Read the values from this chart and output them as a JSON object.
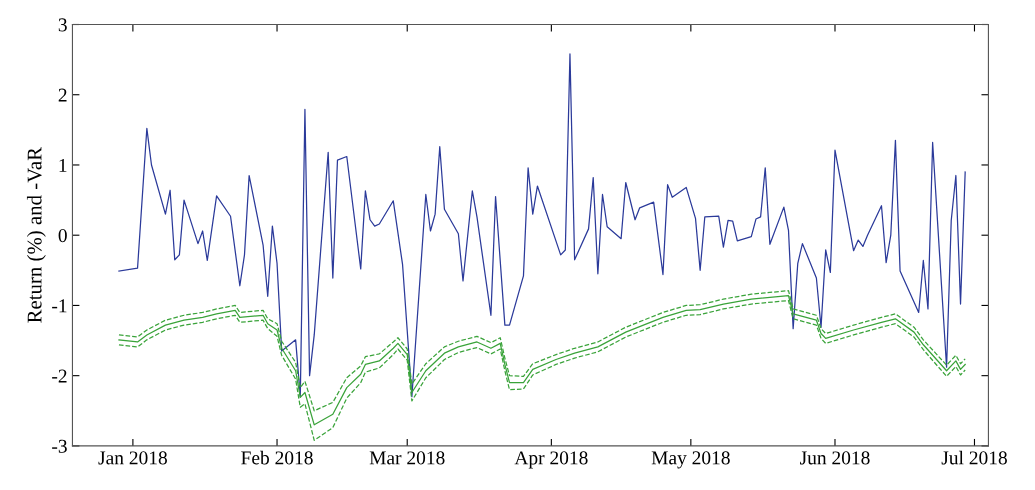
{
  "chart_data": {
    "type": "line",
    "ylabel": "Return (%) and -VaR",
    "xlim": [
      "2017-12-19",
      "2018-07-04"
    ],
    "ylim": [
      -3,
      3
    ],
    "xticks": [
      {
        "value": "2018-01-01",
        "label": "Jan 2018"
      },
      {
        "value": "2018-02-01",
        "label": "Feb 2018"
      },
      {
        "value": "2018-03-01",
        "label": "Mar 2018"
      },
      {
        "value": "2018-04-01",
        "label": "Apr 2018"
      },
      {
        "value": "2018-05-01",
        "label": "May 2018"
      },
      {
        "value": "2018-06-01",
        "label": "Jun 2018"
      },
      {
        "value": "2018-07-01",
        "label": "Jul 2018"
      }
    ],
    "yticks": [
      -3,
      -2,
      -1,
      0,
      1,
      2,
      3
    ],
    "grid": false,
    "marker": "none",
    "line_style": "solid",
    "series": [
      {
        "color": "#2b3a9a",
        "x": [
          "2017-12-29",
          "2018-01-02",
          "2018-01-04",
          "2018-01-05",
          "2018-01-08",
          "2018-01-09",
          "2018-01-10",
          "2018-01-11",
          "2018-01-12",
          "2018-01-15",
          "2018-01-16",
          "2018-01-17",
          "2018-01-19",
          "2018-01-22",
          "2018-01-24",
          "2018-01-25",
          "2018-01-26",
          "2018-01-29",
          "2018-01-30",
          "2018-01-31",
          "2018-02-01",
          "2018-02-02",
          "2018-02-05",
          "2018-02-06",
          "2018-02-07",
          "2018-02-08",
          "2018-02-09",
          "2018-02-12",
          "2018-02-13",
          "2018-02-14",
          "2018-02-16",
          "2018-02-19",
          "2018-02-20",
          "2018-02-21",
          "2018-02-22",
          "2018-02-23",
          "2018-02-26",
          "2018-02-28",
          "2018-03-02",
          "2018-03-05",
          "2018-03-06",
          "2018-03-07",
          "2018-03-08",
          "2018-03-09",
          "2018-03-12",
          "2018-03-13",
          "2018-03-15",
          "2018-03-16",
          "2018-03-19",
          "2018-03-20",
          "2018-03-22",
          "2018-03-23",
          "2018-03-26",
          "2018-03-27",
          "2018-03-28",
          "2018-03-29",
          "2018-04-03",
          "2018-04-04",
          "2018-04-05",
          "2018-04-06",
          "2018-04-09",
          "2018-04-10",
          "2018-04-11",
          "2018-04-12",
          "2018-04-13",
          "2018-04-16",
          "2018-04-17",
          "2018-04-19",
          "2018-04-20",
          "2018-04-23",
          "2018-04-25",
          "2018-04-26",
          "2018-04-27",
          "2018-04-30",
          "2018-05-02",
          "2018-05-03",
          "2018-05-04",
          "2018-05-07",
          "2018-05-08",
          "2018-05-09",
          "2018-05-10",
          "2018-05-11",
          "2018-05-14",
          "2018-05-15",
          "2018-05-16",
          "2018-05-17",
          "2018-05-18",
          "2018-05-21",
          "2018-05-22",
          "2018-05-23",
          "2018-05-24",
          "2018-05-25",
          "2018-05-28",
          "2018-05-29",
          "2018-05-30",
          "2018-05-31",
          "2018-06-01",
          "2018-06-05",
          "2018-06-06",
          "2018-06-07",
          "2018-06-08",
          "2018-06-11",
          "2018-06-12",
          "2018-06-13",
          "2018-06-14",
          "2018-06-15",
          "2018-06-19",
          "2018-06-20",
          "2018-06-21",
          "2018-06-22",
          "2018-06-25",
          "2018-06-26",
          "2018-06-27",
          "2018-06-28",
          "2018-06-29"
        ],
        "values": [
          -0.51,
          -0.47,
          1.52,
          1.0,
          0.3,
          0.64,
          -0.35,
          -0.28,
          0.5,
          -0.12,
          0.06,
          -0.36,
          0.56,
          0.27,
          -0.72,
          -0.28,
          0.85,
          -0.14,
          -0.87,
          0.13,
          -0.4,
          -1.65,
          -1.49,
          -2.3,
          1.79,
          -2.0,
          -1.42,
          1.18,
          -0.61,
          1.07,
          1.12,
          -0.48,
          0.63,
          0.22,
          0.13,
          0.16,
          0.49,
          -0.42,
          -2.3,
          0.58,
          0.06,
          0.3,
          1.26,
          0.37,
          0.02,
          -0.65,
          0.63,
          0.26,
          -1.14,
          0.55,
          -1.28,
          -1.28,
          -0.58,
          0.96,
          0.3,
          0.7,
          -0.28,
          -0.21,
          2.58,
          -0.35,
          0.09,
          0.82,
          -0.55,
          0.58,
          0.12,
          -0.05,
          0.75,
          0.22,
          0.39,
          0.47,
          -0.56,
          0.72,
          0.54,
          0.68,
          0.24,
          -0.5,
          0.26,
          0.27,
          -0.17,
          0.21,
          0.2,
          -0.08,
          -0.02,
          0.23,
          0.26,
          0.96,
          -0.13,
          0.4,
          0.07,
          -1.33,
          -0.4,
          -0.12,
          -0.61,
          -1.31,
          -0.21,
          -0.53,
          1.21,
          -0.22,
          -0.07,
          -0.16,
          0.0,
          0.42,
          -0.39,
          0.0,
          1.35,
          -0.51,
          -1.1,
          -0.36,
          -1.05,
          1.32,
          -1.88,
          0.21,
          0.85,
          -0.98,
          0.9
        ]
      },
      {
        "color": "#3aa33a",
        "x": [
          "2017-12-29",
          "2018-01-02",
          "2018-01-04",
          "2018-01-08",
          "2018-01-12",
          "2018-01-16",
          "2018-01-19",
          "2018-01-23",
          "2018-01-24",
          "2018-01-29",
          "2018-01-30",
          "2018-02-01",
          "2018-02-02",
          "2018-02-05",
          "2018-02-06",
          "2018-02-07",
          "2018-02-09",
          "2018-02-13",
          "2018-02-16",
          "2018-02-19",
          "2018-02-20",
          "2018-02-23",
          "2018-02-26",
          "2018-02-27",
          "2018-03-01",
          "2018-03-02",
          "2018-03-05",
          "2018-03-09",
          "2018-03-12",
          "2018-03-16",
          "2018-03-19",
          "2018-03-21",
          "2018-03-22",
          "2018-03-23",
          "2018-03-26",
          "2018-03-28",
          "2018-04-02",
          "2018-04-06",
          "2018-04-11",
          "2018-04-17",
          "2018-04-25",
          "2018-04-30",
          "2018-05-03",
          "2018-05-08",
          "2018-05-14",
          "2018-05-22",
          "2018-05-23",
          "2018-05-28",
          "2018-05-29",
          "2018-05-30",
          "2018-06-05",
          "2018-06-11",
          "2018-06-14",
          "2018-06-18",
          "2018-06-20",
          "2018-06-25",
          "2018-06-27",
          "2018-06-28",
          "2018-06-29"
        ],
        "values": [
          -1.49,
          -1.52,
          -1.42,
          -1.28,
          -1.21,
          -1.17,
          -1.12,
          -1.07,
          -1.17,
          -1.14,
          -1.26,
          -1.35,
          -1.61,
          -1.93,
          -2.31,
          -2.24,
          -2.7,
          -2.55,
          -2.17,
          -1.98,
          -1.84,
          -1.79,
          -1.61,
          -1.54,
          -1.7,
          -2.24,
          -1.93,
          -1.68,
          -1.59,
          -1.52,
          -1.61,
          -1.54,
          -1.84,
          -2.1,
          -2.1,
          -1.91,
          -1.77,
          -1.68,
          -1.59,
          -1.38,
          -1.17,
          -1.07,
          -1.06,
          -0.98,
          -0.91,
          -0.86,
          -1.12,
          -1.21,
          -1.4,
          -1.47,
          -1.35,
          -1.24,
          -1.19,
          -1.38,
          -1.56,
          -1.93,
          -1.79,
          -1.91,
          -1.84
        ]
      },
      {
        "color": "#3aa33a",
        "line_style": "dashed",
        "x": [
          "2017-12-29",
          "2018-01-02",
          "2018-01-04",
          "2018-01-08",
          "2018-01-12",
          "2018-01-16",
          "2018-01-19",
          "2018-01-23",
          "2018-01-24",
          "2018-01-29",
          "2018-01-30",
          "2018-02-01",
          "2018-02-02",
          "2018-02-05",
          "2018-02-06",
          "2018-02-07",
          "2018-02-09",
          "2018-02-13",
          "2018-02-16",
          "2018-02-19",
          "2018-02-20",
          "2018-02-23",
          "2018-02-26",
          "2018-02-27",
          "2018-03-01",
          "2018-03-02",
          "2018-03-05",
          "2018-03-09",
          "2018-03-12",
          "2018-03-16",
          "2018-03-19",
          "2018-03-21",
          "2018-03-22",
          "2018-03-23",
          "2018-03-26",
          "2018-03-28",
          "2018-04-02",
          "2018-04-06",
          "2018-04-11",
          "2018-04-17",
          "2018-04-25",
          "2018-04-30",
          "2018-05-03",
          "2018-05-08",
          "2018-05-14",
          "2018-05-22",
          "2018-05-23",
          "2018-05-28",
          "2018-05-29",
          "2018-05-30",
          "2018-06-05",
          "2018-06-11",
          "2018-06-14",
          "2018-06-18",
          "2018-06-20",
          "2018-06-25",
          "2018-06-27",
          "2018-06-28",
          "2018-06-29"
        ],
        "values": [
          -1.42,
          -1.45,
          -1.35,
          -1.21,
          -1.14,
          -1.1,
          -1.05,
          -1.0,
          -1.1,
          -1.07,
          -1.19,
          -1.26,
          -1.51,
          -1.81,
          -2.17,
          -2.08,
          -2.5,
          -2.38,
          -2.03,
          -1.86,
          -1.73,
          -1.69,
          -1.52,
          -1.46,
          -1.62,
          -2.12,
          -1.83,
          -1.59,
          -1.51,
          -1.44,
          -1.53,
          -1.46,
          -1.75,
          -2.0,
          -2.01,
          -1.83,
          -1.7,
          -1.61,
          -1.52,
          -1.31,
          -1.1,
          -1.0,
          -0.99,
          -0.91,
          -0.84,
          -0.79,
          -1.05,
          -1.14,
          -1.33,
          -1.4,
          -1.28,
          -1.17,
          -1.12,
          -1.31,
          -1.49,
          -1.85,
          -1.71,
          -1.83,
          -1.76
        ]
      },
      {
        "color": "#3aa33a",
        "line_style": "dashed",
        "x": [
          "2017-12-29",
          "2018-01-02",
          "2018-01-04",
          "2018-01-08",
          "2018-01-12",
          "2018-01-16",
          "2018-01-19",
          "2018-01-23",
          "2018-01-24",
          "2018-01-29",
          "2018-01-30",
          "2018-02-01",
          "2018-02-02",
          "2018-02-05",
          "2018-02-06",
          "2018-02-07",
          "2018-02-09",
          "2018-02-13",
          "2018-02-16",
          "2018-02-19",
          "2018-02-20",
          "2018-02-23",
          "2018-02-26",
          "2018-02-27",
          "2018-03-01",
          "2018-03-02",
          "2018-03-05",
          "2018-03-09",
          "2018-03-12",
          "2018-03-16",
          "2018-03-19",
          "2018-03-21",
          "2018-03-22",
          "2018-03-23",
          "2018-03-26",
          "2018-03-28",
          "2018-04-02",
          "2018-04-06",
          "2018-04-11",
          "2018-04-17",
          "2018-04-25",
          "2018-04-30",
          "2018-05-03",
          "2018-05-08",
          "2018-05-14",
          "2018-05-22",
          "2018-05-23",
          "2018-05-28",
          "2018-05-29",
          "2018-05-30",
          "2018-06-05",
          "2018-06-11",
          "2018-06-14",
          "2018-06-18",
          "2018-06-20",
          "2018-06-25",
          "2018-06-27",
          "2018-06-28",
          "2018-06-29"
        ],
        "values": [
          -1.56,
          -1.59,
          -1.49,
          -1.35,
          -1.28,
          -1.24,
          -1.19,
          -1.14,
          -1.24,
          -1.21,
          -1.33,
          -1.44,
          -1.71,
          -2.05,
          -2.45,
          -2.4,
          -2.92,
          -2.74,
          -2.32,
          -2.1,
          -1.95,
          -1.89,
          -1.7,
          -1.62,
          -1.78,
          -2.36,
          -2.03,
          -1.77,
          -1.67,
          -1.6,
          -1.69,
          -1.62,
          -1.93,
          -2.2,
          -2.19,
          -1.99,
          -1.84,
          -1.75,
          -1.66,
          -1.45,
          -1.24,
          -1.14,
          -1.13,
          -1.05,
          -0.98,
          -0.93,
          -1.19,
          -1.28,
          -1.47,
          -1.54,
          -1.42,
          -1.31,
          -1.26,
          -1.45,
          -1.63,
          -2.01,
          -1.87,
          -1.99,
          -1.92
        ]
      }
    ]
  }
}
